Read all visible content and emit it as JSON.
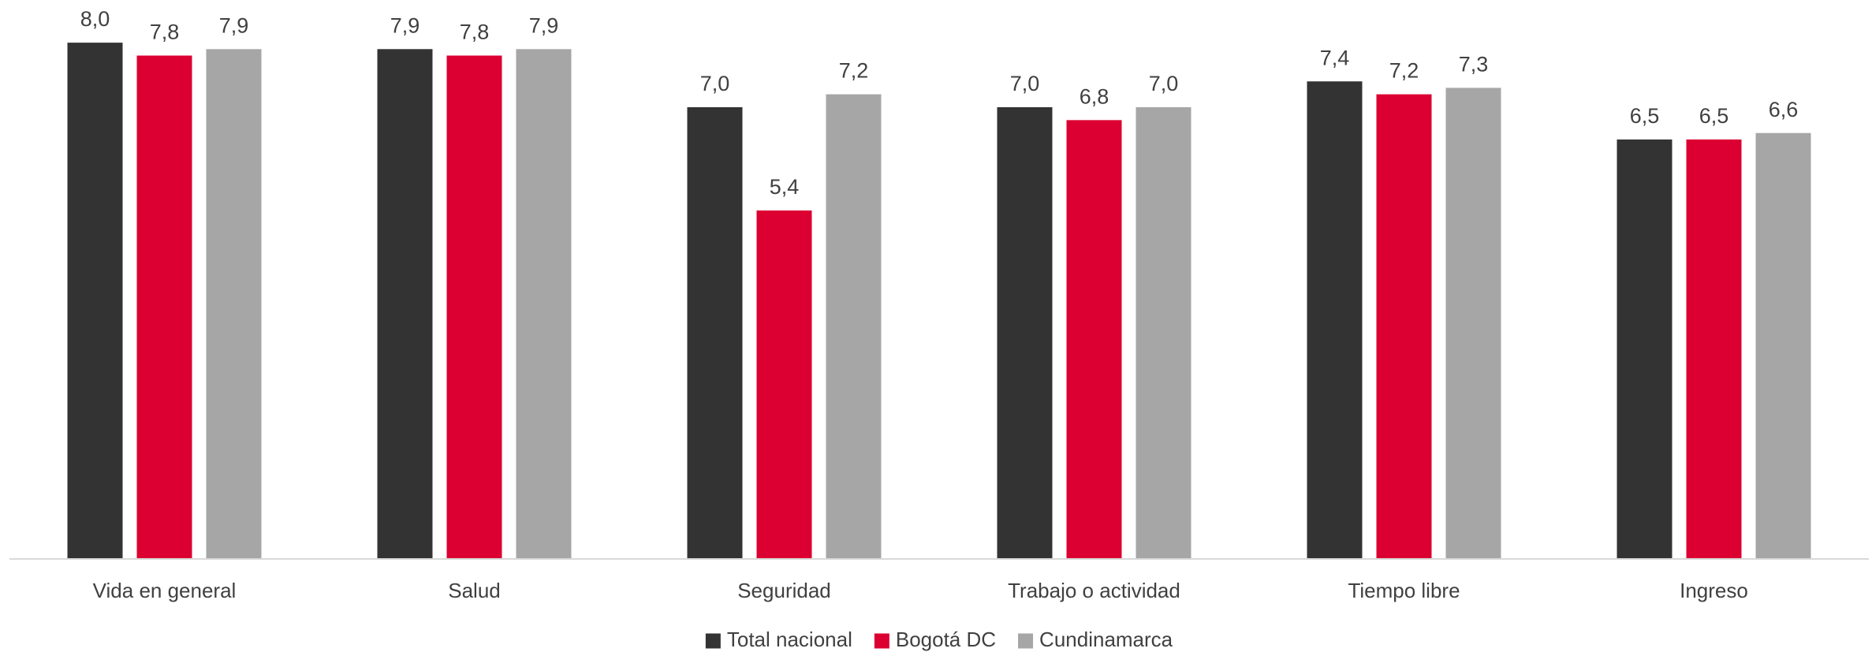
{
  "chart_data": {
    "type": "bar",
    "categories": [
      "Vida en general",
      "Salud",
      "Seguridad",
      "Trabajo o actividad",
      "Tiempo libre",
      "Ingreso"
    ],
    "series": [
      {
        "name": "Total nacional",
        "color": "#333333",
        "values": [
          8.0,
          7.9,
          7.0,
          7.0,
          7.4,
          6.5
        ],
        "value_labels": [
          "8,0",
          "7,9",
          "7,0",
          "7,0",
          "7,4",
          "6,5"
        ]
      },
      {
        "name": "Bogotá DC",
        "color": "#dc0032",
        "values": [
          7.8,
          7.8,
          5.4,
          6.8,
          7.2,
          6.5
        ],
        "value_labels": [
          "7,8",
          "7,8",
          "5,4",
          "6,8",
          "7,2",
          "6,5"
        ]
      },
      {
        "name": "Cundinamarca",
        "color": "#a6a6a6",
        "values": [
          7.9,
          7.9,
          7.2,
          7.0,
          7.3,
          6.6
        ],
        "value_labels": [
          "7,9",
          "7,9",
          "7,2",
          "7,0",
          "7,3",
          "6,6"
        ]
      }
    ],
    "ylim": [
      0,
      8.6
    ],
    "legend": "bottom"
  }
}
